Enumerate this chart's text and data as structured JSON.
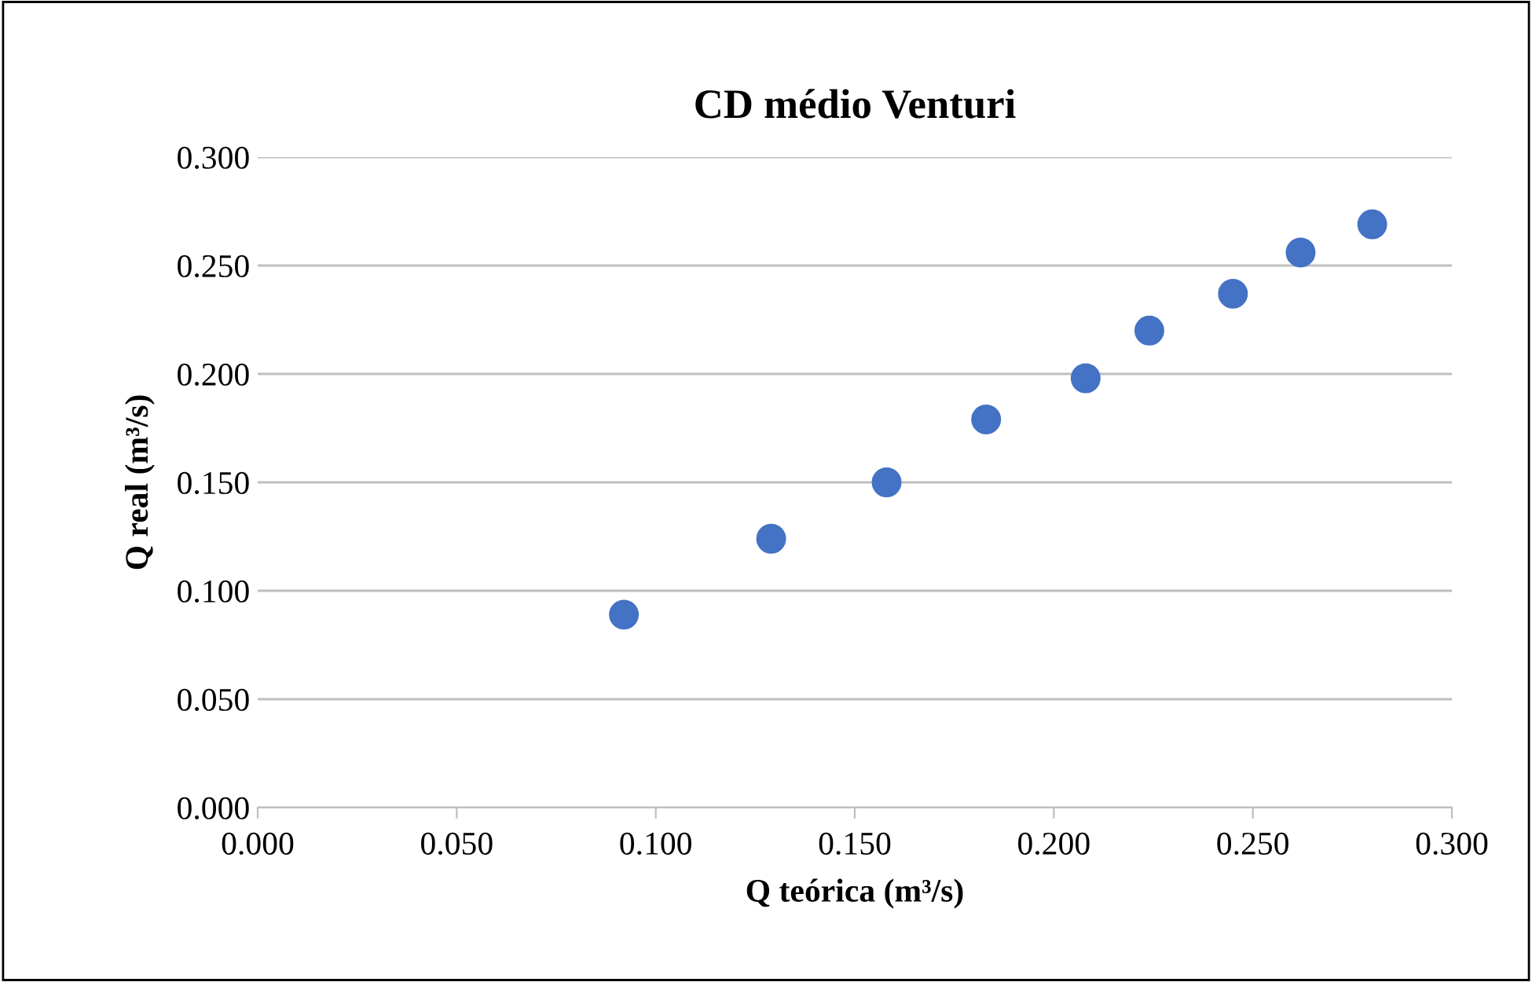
{
  "chart_data": {
    "type": "scatter",
    "title": "CD médio Venturi",
    "xlabel": "Q teórica (m³/s)",
    "ylabel": "Q real (m³/s)",
    "x": [
      0.092,
      0.129,
      0.158,
      0.183,
      0.208,
      0.224,
      0.245,
      0.262,
      0.28
    ],
    "series": [
      {
        "color": "#4472c4",
        "values": [
          0.089,
          0.124,
          0.15,
          0.179,
          0.198,
          0.22,
          0.237,
          0.256,
          0.269
        ]
      }
    ],
    "xlim": [
      0,
      0.3
    ],
    "ylim": [
      0,
      0.3
    ],
    "xticks": [
      {
        "value": 0,
        "label": "0.000"
      },
      {
        "value": 0.05,
        "label": "0.050"
      },
      {
        "value": 0.1,
        "label": "0.100"
      },
      {
        "value": 0.15,
        "label": "0.150"
      },
      {
        "value": 0.2,
        "label": "0.200"
      },
      {
        "value": 0.25,
        "label": "0.250"
      },
      {
        "value": 0.3,
        "label": "0.300"
      }
    ],
    "yticks": [
      {
        "value": 0,
        "label": "0.000"
      },
      {
        "value": 0.05,
        "label": "0.050"
      },
      {
        "value": 0.1,
        "label": "0.100"
      },
      {
        "value": 0.15,
        "label": "0.150"
      },
      {
        "value": 0.2,
        "label": "0.200"
      },
      {
        "value": 0.25,
        "label": "0.250"
      },
      {
        "value": 0.3,
        "label": "0.300"
      }
    ],
    "grid": "y",
    "marker": "circle"
  }
}
